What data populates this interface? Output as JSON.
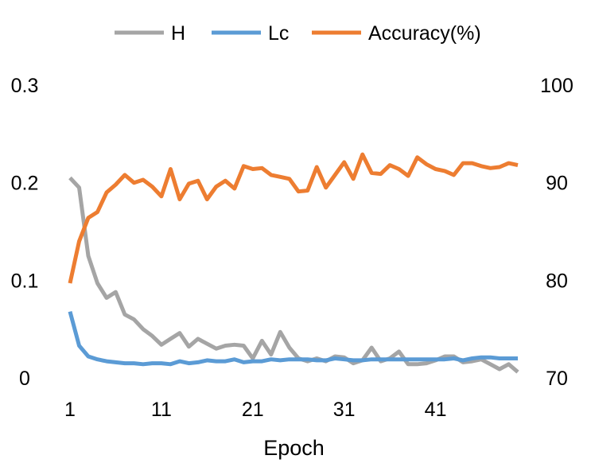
{
  "chart_data": {
    "type": "line",
    "title": "",
    "xlabel": "Epoch",
    "x_ticks": [
      "1",
      "11",
      "21",
      "31",
      "41"
    ],
    "y_left_ticks": [
      "0",
      "0.1",
      "0.2",
      "0.3"
    ],
    "y_right_ticks": [
      "70",
      "80",
      "90",
      "100"
    ],
    "ylim_left": [
      0,
      0.3
    ],
    "ylim_right": [
      70,
      100
    ],
    "grid": false,
    "legend_position": "top",
    "x": [
      1,
      2,
      3,
      4,
      5,
      6,
      7,
      8,
      9,
      10,
      11,
      12,
      13,
      14,
      15,
      16,
      17,
      18,
      19,
      20,
      21,
      22,
      23,
      24,
      25,
      26,
      27,
      28,
      29,
      30,
      31,
      32,
      33,
      34,
      35,
      36,
      37,
      38,
      39,
      40,
      41,
      42,
      43,
      44,
      45,
      46,
      47,
      48,
      49,
      50
    ],
    "series": [
      {
        "name": "H",
        "axis": "left",
        "color": "#A5A5A5",
        "values": [
          0.205,
          0.195,
          0.125,
          0.097,
          0.082,
          0.088,
          0.065,
          0.06,
          0.05,
          0.043,
          0.034,
          0.04,
          0.046,
          0.032,
          0.04,
          0.035,
          0.03,
          0.033,
          0.034,
          0.033,
          0.02,
          0.038,
          0.024,
          0.047,
          0.031,
          0.02,
          0.017,
          0.02,
          0.017,
          0.022,
          0.021,
          0.015,
          0.018,
          0.031,
          0.017,
          0.02,
          0.027,
          0.014,
          0.014,
          0.015,
          0.018,
          0.022,
          0.022,
          0.016,
          0.017,
          0.019,
          0.014,
          0.009,
          0.014,
          0.006
        ]
      },
      {
        "name": "Lc",
        "axis": "left",
        "color": "#5B9BD5",
        "values": [
          0.068,
          0.033,
          0.022,
          0.019,
          0.017,
          0.016,
          0.015,
          0.015,
          0.014,
          0.015,
          0.015,
          0.014,
          0.017,
          0.015,
          0.016,
          0.018,
          0.017,
          0.017,
          0.019,
          0.016,
          0.017,
          0.017,
          0.019,
          0.018,
          0.019,
          0.019,
          0.019,
          0.018,
          0.018,
          0.02,
          0.019,
          0.018,
          0.018,
          0.019,
          0.019,
          0.019,
          0.019,
          0.019,
          0.019,
          0.019,
          0.019,
          0.019,
          0.02,
          0.018,
          0.02,
          0.021,
          0.021,
          0.02,
          0.02,
          0.02
        ]
      },
      {
        "name": "Accuracy(%)",
        "axis": "right",
        "color": "#ED7D31",
        "values": [
          79.7,
          84.0,
          86.4,
          87.0,
          89.0,
          89.8,
          90.8,
          90.0,
          90.3,
          89.6,
          88.6,
          91.4,
          88.3,
          89.9,
          90.2,
          88.3,
          89.6,
          90.2,
          89.4,
          91.7,
          91.4,
          91.5,
          90.8,
          90.6,
          90.4,
          89.1,
          89.2,
          91.6,
          89.5,
          90.8,
          92.1,
          90.4,
          92.9,
          91.0,
          90.9,
          91.8,
          91.4,
          90.7,
          92.6,
          91.9,
          91.4,
          91.2,
          90.8,
          92.0,
          92.0,
          91.7,
          91.5,
          91.6,
          92.0,
          91.8
        ]
      }
    ]
  }
}
